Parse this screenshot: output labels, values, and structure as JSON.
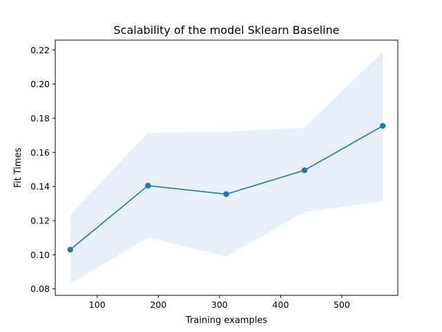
{
  "chart_data": {
    "type": "line",
    "title": "Scalability of the model Sklearn Baseline",
    "xlabel": "Training examples",
    "ylabel": "Fit Times",
    "x": [
      56,
      183,
      311,
      439,
      567
    ],
    "series": [
      {
        "values": [
          0.103,
          0.1405,
          0.1355,
          0.1495,
          0.1755
        ],
        "lower": [
          0.083,
          0.11,
          0.099,
          0.125,
          0.1315
        ],
        "upper": [
          0.1235,
          0.1715,
          0.172,
          0.1745,
          0.219
        ],
        "color": "#1f77b4",
        "band_color": "#e7eff8"
      }
    ],
    "xlim": [
      31.4,
      591.6
    ],
    "ylim": [
      0.0762,
      0.2258
    ],
    "xticks": [
      100,
      200,
      300,
      400,
      500
    ],
    "yticks": [
      0.08,
      0.1,
      0.12,
      0.14,
      0.16,
      0.18,
      0.2,
      0.22
    ],
    "xtick_labels": [
      "100",
      "200",
      "300",
      "400",
      "500"
    ],
    "ytick_labels": [
      "0.08",
      "0.10",
      "0.12",
      "0.14",
      "0.16",
      "0.18",
      "0.20",
      "0.22"
    ],
    "grid": false,
    "legend": "none"
  }
}
